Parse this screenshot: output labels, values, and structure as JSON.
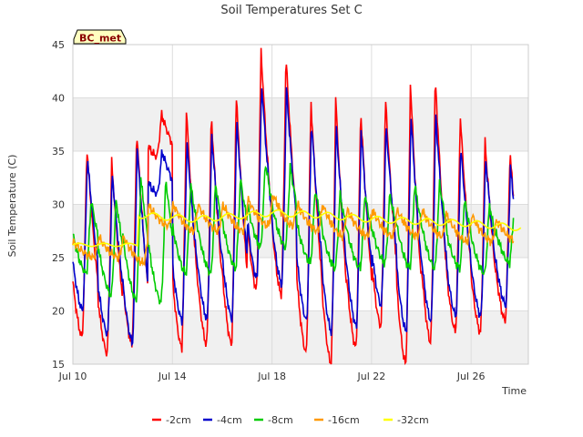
{
  "chart_data": {
    "type": "line",
    "title": "Soil Temperatures Set C",
    "station_label": "BC_met",
    "xlabel": "Time",
    "ylabel": "Soil Temperature (C)",
    "xlim": [
      0,
      18.3
    ],
    "ylim": [
      15,
      45
    ],
    "y_ticks": [
      15,
      20,
      25,
      30,
      35,
      40,
      45
    ],
    "x_ticks": [
      {
        "day": 0,
        "label": "Jul 10"
      },
      {
        "day": 4,
        "label": "Jul 14"
      },
      {
        "day": 8,
        "label": "Jul 18"
      },
      {
        "day": 12,
        "label": "Jul 22"
      },
      {
        "day": 16,
        "label": "Jul 26"
      }
    ],
    "grid": true,
    "background_bands": "alternating grey/white between y ticks",
    "legend_position": "bottom",
    "series": [
      {
        "name": "-2cm",
        "color": "#ff0000",
        "daily_min": [
          17.5,
          16.0,
          16.8,
          34.5,
          16.5,
          16.8,
          16.8,
          22.0,
          21.5,
          16.0,
          15.0,
          16.5,
          18.5,
          15.0,
          17.0,
          18.0,
          18.0,
          19.0,
          22.0
        ],
        "daily_max": [
          35.5,
          34.0,
          37.0,
          38.5,
          39.0,
          38.5,
          40.5,
          44.5,
          44.0,
          40.0,
          40.0,
          39.0,
          40.0,
          41.5,
          42.0,
          38.5,
          36.0,
          35.0,
          35.0
        ]
      },
      {
        "name": "-4cm",
        "color": "#0000cc",
        "daily_min": [
          20.0,
          17.8,
          17.0,
          31.0,
          19.0,
          19.2,
          19.2,
          23.0,
          22.5,
          19.0,
          18.0,
          18.5,
          20.5,
          18.0,
          19.0,
          19.5,
          19.5,
          20.5,
          23.5
        ],
        "daily_max": [
          34.5,
          33.0,
          35.5,
          35.0,
          36.0,
          36.5,
          38.0,
          41.5,
          41.0,
          38.0,
          37.5,
          37.0,
          37.5,
          38.5,
          38.5,
          35.5,
          34.5,
          33.5,
          33.5
        ]
      },
      {
        "name": "-8cm",
        "color": "#00cc00",
        "daily_min": [
          23.5,
          21.5,
          21.0,
          20.8,
          23.5,
          23.5,
          24.0,
          26.0,
          26.0,
          24.5,
          24.0,
          24.0,
          24.5,
          24.0,
          24.0,
          24.0,
          23.5,
          24.5,
          26.0
        ],
        "daily_max": [
          30.5,
          30.5,
          32.5,
          32.5,
          32.0,
          32.0,
          32.5,
          34.0,
          33.5,
          31.5,
          31.0,
          31.0,
          31.0,
          32.0,
          32.0,
          30.5,
          30.0,
          30.0,
          30.0
        ],
        "notes": "daily cycle"
      },
      {
        "name": "-16cm",
        "color": "#ff9900",
        "daily_min": [
          25.0,
          25.0,
          24.5,
          28.0,
          27.5,
          27.5,
          27.5,
          28.0,
          28.0,
          27.5,
          27.0,
          27.0,
          27.0,
          27.0,
          27.0,
          26.5,
          26.5,
          26.5,
          27.0
        ],
        "daily_max": [
          26.5,
          27.0,
          27.0,
          30.0,
          30.0,
          30.0,
          30.0,
          30.5,
          31.0,
          30.0,
          30.0,
          29.5,
          29.5,
          29.5,
          29.5,
          29.0,
          29.0,
          28.5,
          28.5
        ]
      },
      {
        "name": "-32cm",
        "color": "#ffff00",
        "points": [
          [
            0,
            26.2
          ],
          [
            2.6,
            26.2
          ],
          [
            2.65,
            29.0
          ],
          [
            5,
            28.6
          ],
          [
            8,
            29.2
          ],
          [
            10,
            29.0
          ],
          [
            12,
            28.6
          ],
          [
            14,
            28.4
          ],
          [
            16,
            28.2
          ],
          [
            18,
            27.8
          ]
        ]
      }
    ]
  }
}
